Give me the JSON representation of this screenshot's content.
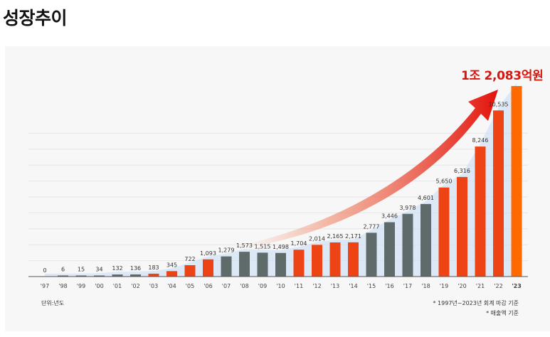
{
  "page": {
    "title": "성장추이"
  },
  "colors": {
    "orange": "#ff6a00",
    "red_orange": "#ee4415",
    "gray": "#5f6a6b",
    "arrow_red": "#d4180f",
    "background_band": "#c9dcf5"
  },
  "notes": {
    "unit": "단위:년도",
    "footnote1": "* 1997년~2023년 회계 마감 기준",
    "footnote2": "* 매출액 기준"
  },
  "chart_data": {
    "type": "bar",
    "categories": [
      "'97",
      "'98",
      "'99",
      "'00",
      "'01",
      "'02",
      "'03",
      "'04",
      "'05",
      "'06",
      "'07",
      "'08",
      "'09",
      "'10",
      "'11",
      "'12",
      "'13",
      "'14",
      "'15",
      "'16",
      "'17",
      "'18",
      "'19",
      "'20",
      "'21",
      "'22",
      "'23"
    ],
    "values": [
      0,
      6,
      15,
      34,
      132,
      136,
      183,
      345,
      722,
      1093,
      1279,
      1573,
      1515,
      1498,
      1704,
      2014,
      2165,
      2171,
      2777,
      3446,
      3978,
      4601,
      5650,
      6316,
      8246,
      10535,
      12083
    ],
    "labels": [
      "0",
      "6",
      "15",
      "34",
      "132",
      "136",
      "183",
      "345",
      "722",
      "1,093",
      "1,279",
      "1,573",
      "1,515",
      "1,498",
      "1,704",
      "2,014",
      "2,165",
      "2,171",
      "2,777",
      "3,446",
      "3,978",
      "4,601",
      "5,650",
      "6,316",
      "8,246",
      "10,535",
      ""
    ],
    "bar_colors": [
      "gray",
      "gray",
      "gray",
      "gray",
      "gray",
      "gray",
      "red_orange",
      "red_orange",
      "red_orange",
      "red_orange",
      "gray",
      "gray",
      "gray",
      "gray",
      "red_orange",
      "red_orange",
      "red_orange",
      "red_orange",
      "gray",
      "gray",
      "gray",
      "gray",
      "red_orange",
      "red_orange",
      "red_orange",
      "red_orange",
      "orange"
    ],
    "highlight": {
      "category": "'23",
      "label": "1조 2,083억원"
    },
    "ylim": [
      0,
      12083
    ],
    "grid": true,
    "title": "",
    "xlabel": "",
    "ylabel": ""
  }
}
